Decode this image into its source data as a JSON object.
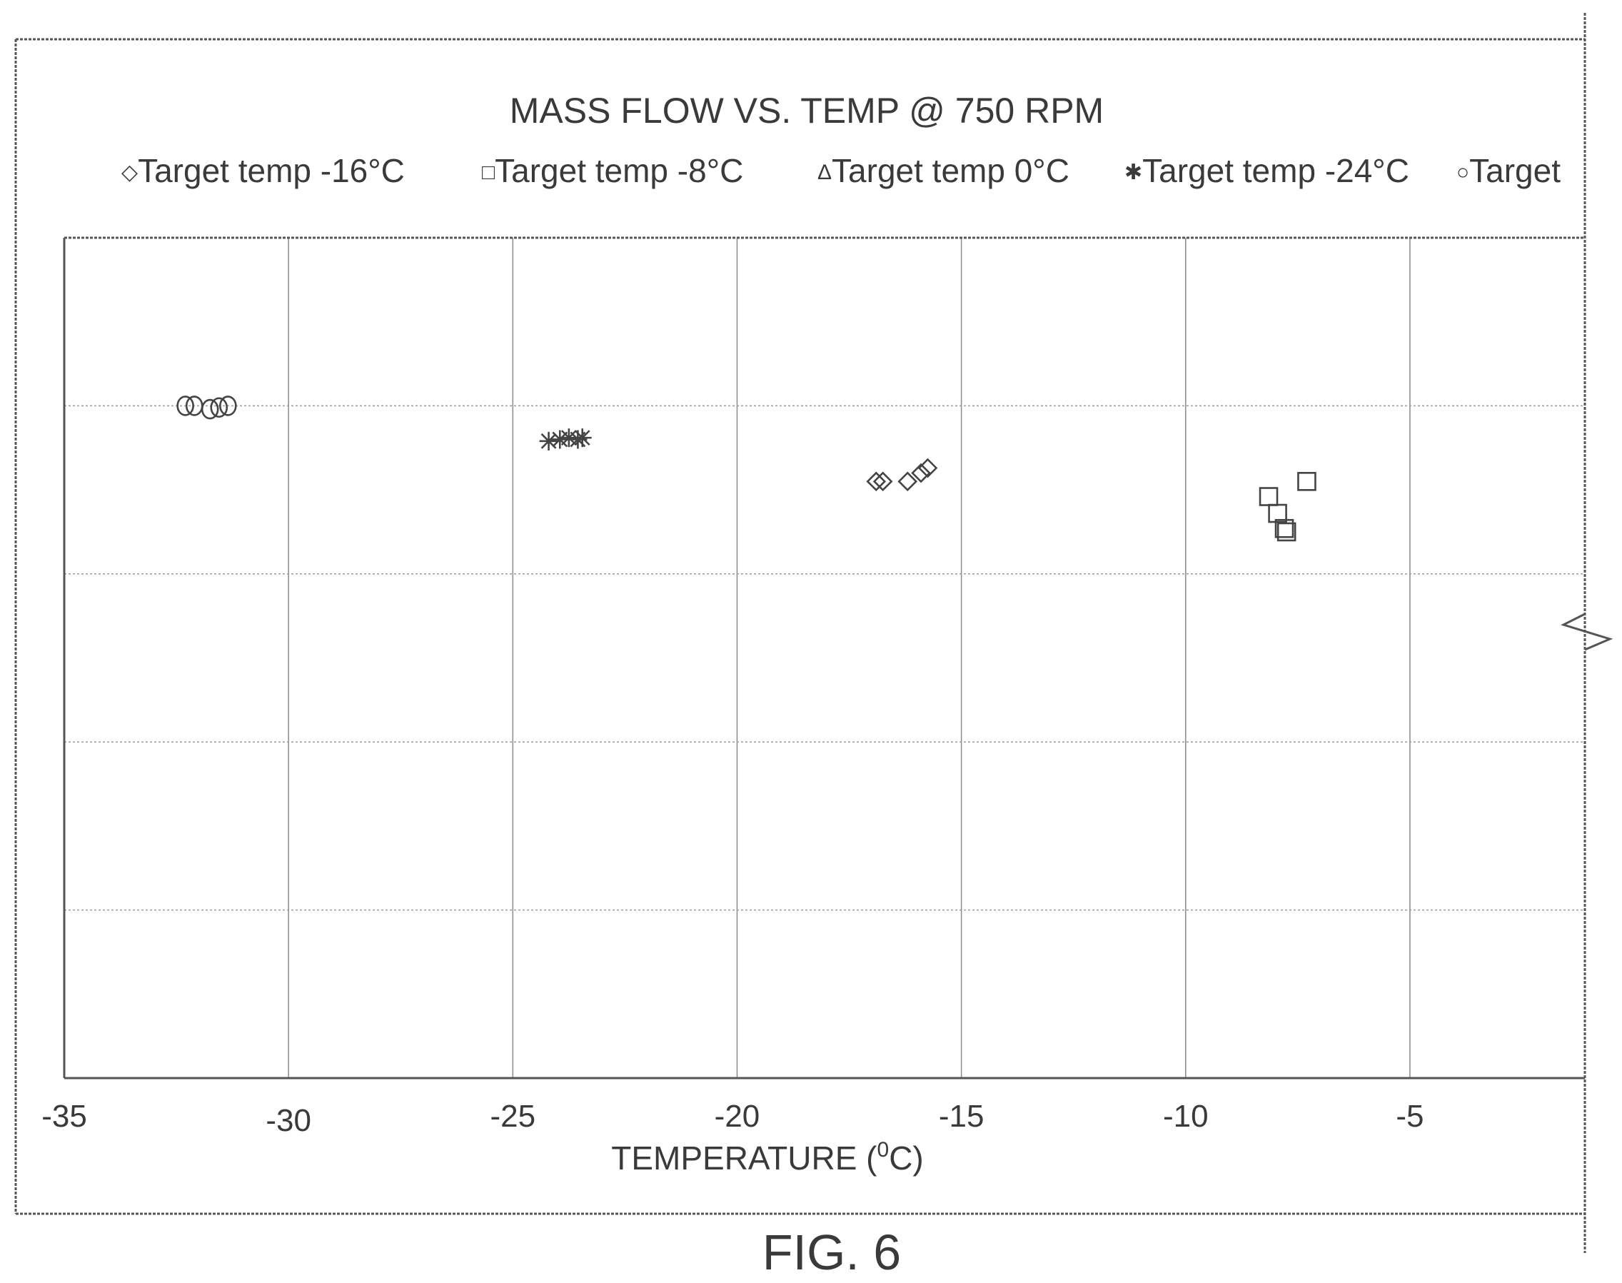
{
  "chart_data": {
    "type": "scatter",
    "title": "MASS FLOW VS. TEMP @ 750 RPM",
    "xlabel_main": "TEMPERATURE (",
    "xlabel_sup": "0",
    "xlabel_end": "C)",
    "ylabel": "",
    "xlim": [
      -35,
      -1.1
    ],
    "ylim": [
      0,
      5
    ],
    "x_ticks": [
      -35,
      -30,
      -25,
      -20,
      -15,
      -10,
      -5
    ],
    "x_tick_labels": [
      "-35",
      "-30",
      "-25",
      "-20",
      "-15",
      "-10",
      "-5"
    ],
    "y_gridlines": [
      1,
      2,
      3,
      4,
      5
    ],
    "grid": true,
    "legend_position": "top",
    "series": [
      {
        "name": "Target temp -16°C",
        "marker": "diamond",
        "symbol": "◇",
        "points": [
          [
            -16.9,
            3.55
          ],
          [
            -16.75,
            3.55
          ],
          [
            -16.2,
            3.55
          ],
          [
            -15.9,
            3.6
          ],
          [
            -15.75,
            3.63
          ]
        ]
      },
      {
        "name": "Target temp -8°C",
        "marker": "square",
        "symbol": "□",
        "points": [
          [
            -7.3,
            3.55
          ],
          [
            -8.15,
            3.46
          ],
          [
            -7.95,
            3.36
          ],
          [
            -7.8,
            3.27
          ],
          [
            -7.75,
            3.25
          ]
        ]
      },
      {
        "name": "Target temp 0°C",
        "marker": "triangle",
        "symbol": "Δ",
        "points": []
      },
      {
        "name": "Target temp -24°C",
        "marker": "asterisk",
        "symbol": "✱",
        "points": [
          [
            -24.2,
            3.79
          ],
          [
            -23.95,
            3.8
          ],
          [
            -23.75,
            3.81
          ],
          [
            -23.55,
            3.8
          ],
          [
            -23.45,
            3.81
          ]
        ]
      },
      {
        "name": "Target",
        "marker": "circle",
        "symbol": "○",
        "points": [
          [
            -32.3,
            4.0
          ],
          [
            -32.1,
            4.0
          ],
          [
            -31.75,
            3.98
          ],
          [
            -31.55,
            3.99
          ],
          [
            -31.35,
            4.0
          ]
        ]
      }
    ]
  },
  "caption": "FIG. 6"
}
